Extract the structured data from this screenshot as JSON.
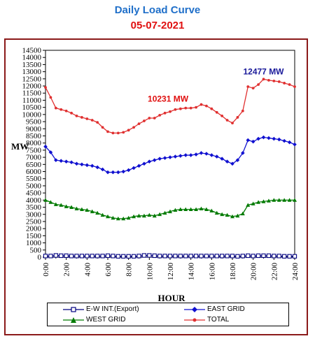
{
  "title": "Daily Load Curve",
  "subtitle": "05-07-2021",
  "colors": {
    "title": "#1f6fc9",
    "subtitle": "#e01010",
    "frame": "#8b1a1a",
    "ew": "#000080",
    "east": "#1010d0",
    "west": "#007a00",
    "total": "#e03030",
    "peak_total_label": "#1a1a9a",
    "mid_total_label": "#e01010"
  },
  "chart_data": {
    "type": "line",
    "xlabel": "HOUR",
    "ylabel": "MW",
    "ylim": [
      0,
      14500
    ],
    "yticks": [
      0,
      500,
      1000,
      1500,
      2000,
      2500,
      3000,
      3500,
      4000,
      4500,
      5000,
      5500,
      6000,
      6500,
      7000,
      7500,
      8000,
      8500,
      9000,
      9500,
      10000,
      10500,
      11000,
      11500,
      12000,
      12500,
      13000,
      13500,
      14000,
      14500
    ],
    "xticks": [
      "0:00",
      "2:00",
      "4:00",
      "6:00",
      "8:00",
      "10:00",
      "12:00",
      "14:00",
      "16:00",
      "18:00",
      "20:00",
      "22:00",
      "24:00"
    ],
    "x": [
      0,
      0.5,
      1,
      1.5,
      2,
      2.5,
      3,
      3.5,
      4,
      4.5,
      5,
      5.5,
      6,
      6.5,
      7,
      7.5,
      8,
      8.5,
      9,
      9.5,
      10,
      10.5,
      11,
      11.5,
      12,
      12.5,
      13,
      13.5,
      14,
      14.5,
      15,
      15.5,
      16,
      16.5,
      17,
      17.5,
      18,
      18.5,
      19,
      19.5,
      20,
      20.5,
      21,
      21.5,
      22,
      22.5,
      23,
      23.5,
      24
    ],
    "grid": false,
    "legend_position": "bottom",
    "series": [
      {
        "name": "E-W INT.(Export)",
        "marker": "square-open",
        "values": [
          80,
          80,
          120,
          100,
          100,
          80,
          80,
          80,
          80,
          80,
          80,
          80,
          100,
          80,
          60,
          60,
          60,
          60,
          80,
          120,
          120,
          100,
          80,
          80,
          80,
          80,
          80,
          80,
          80,
          80,
          80,
          80,
          80,
          80,
          80,
          80,
          80,
          60,
          80,
          100,
          80,
          100,
          100,
          100,
          80,
          80,
          60,
          60,
          60
        ]
      },
      {
        "name": "EAST GRID",
        "marker": "diamond",
        "values": [
          7750,
          7350,
          6800,
          6750,
          6700,
          6650,
          6550,
          6500,
          6450,
          6400,
          6300,
          6150,
          5950,
          5950,
          5950,
          6000,
          6100,
          6250,
          6400,
          6550,
          6700,
          6800,
          6900,
          6950,
          7000,
          7050,
          7100,
          7150,
          7150,
          7200,
          7300,
          7250,
          7150,
          7050,
          6900,
          6700,
          6550,
          6800,
          7300,
          8200,
          8100,
          8300,
          8400,
          8350,
          8300,
          8250,
          8150,
          8050,
          7900
        ]
      },
      {
        "name": "WEST GRID",
        "marker": "triangle",
        "values": [
          4000,
          3850,
          3700,
          3650,
          3550,
          3500,
          3400,
          3350,
          3300,
          3200,
          3100,
          2950,
          2850,
          2750,
          2700,
          2700,
          2750,
          2850,
          2900,
          2900,
          2950,
          2900,
          3000,
          3100,
          3200,
          3300,
          3350,
          3350,
          3350,
          3350,
          3400,
          3350,
          3250,
          3100,
          3000,
          2950,
          2850,
          2900,
          3050,
          3650,
          3750,
          3850,
          3900,
          3950,
          4000,
          4000,
          4000,
          4000,
          4000
        ]
      },
      {
        "name": "TOTAL",
        "marker": "star",
        "values": [
          11900,
          11200,
          10450,
          10350,
          10250,
          10100,
          9900,
          9800,
          9700,
          9600,
          9450,
          9100,
          8800,
          8700,
          8700,
          8750,
          8900,
          9100,
          9350,
          9550,
          9750,
          9750,
          9950,
          10100,
          10200,
          10350,
          10400,
          10450,
          10450,
          10500,
          10700,
          10600,
          10400,
          10150,
          9900,
          9600,
          9400,
          9800,
          10250,
          11950,
          11850,
          12100,
          12477,
          12400,
          12350,
          12300,
          12200,
          12100,
          11950
        ]
      }
    ],
    "annotations": [
      {
        "text": "12477 MW",
        "x": 21,
        "y": 12800,
        "color_key": "peak_total_label"
      },
      {
        "text": "10231 MW",
        "x": 11.8,
        "y": 10900,
        "color_key": "mid_total_label"
      }
    ]
  }
}
